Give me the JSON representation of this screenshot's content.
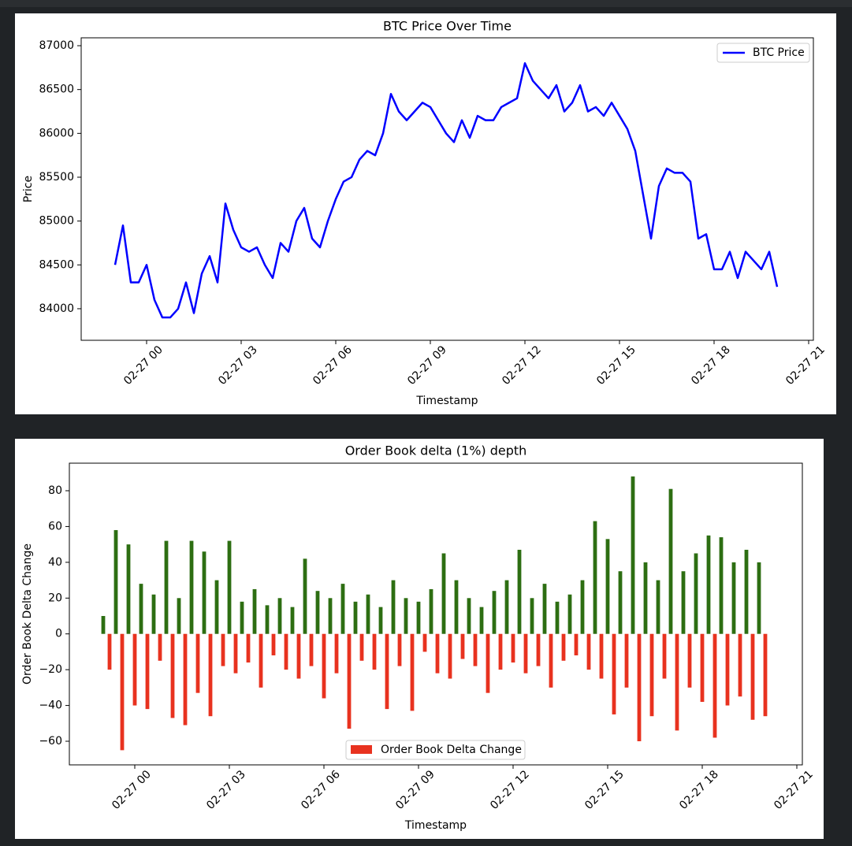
{
  "chart_data": [
    {
      "type": "line",
      "title": "BTC Price Over Time",
      "x_label": "Timestamp",
      "y_label": "Price",
      "x": [
        -1,
        -0.75,
        -0.5,
        -0.25,
        0,
        0.25,
        0.5,
        0.75,
        1,
        1.25,
        1.5,
        1.75,
        2,
        2.25,
        2.5,
        2.75,
        3,
        3.25,
        3.5,
        3.75,
        4,
        4.25,
        4.5,
        4.75,
        5,
        5.25,
        5.5,
        5.75,
        6,
        6.25,
        6.5,
        6.75,
        7,
        7.25,
        7.5,
        7.75,
        8,
        8.25,
        8.5,
        8.75,
        9,
        9.25,
        9.5,
        9.75,
        10,
        10.25,
        10.5,
        10.75,
        11,
        11.25,
        11.5,
        11.75,
        12,
        12.25,
        12.5,
        12.75,
        13,
        13.25,
        13.5,
        13.75,
        14,
        14.25,
        14.5,
        14.75,
        15,
        15.25,
        15.5,
        15.75,
        16,
        16.25,
        16.5,
        16.75,
        17,
        17.25,
        17.5,
        17.75,
        18,
        18.25,
        18.5,
        18.75,
        19,
        19.25,
        19.5,
        19.75,
        20
      ],
      "series": [
        {
          "name": "BTC Price",
          "color": "#0000ff",
          "values": [
            84500,
            84950,
            84300,
            84300,
            84500,
            84100,
            83900,
            83900,
            84000,
            84300,
            83950,
            84400,
            84600,
            84300,
            85200,
            84900,
            84700,
            84650,
            84700,
            84500,
            84350,
            84750,
            84650,
            85000,
            85150,
            84800,
            84700,
            85000,
            85250,
            85450,
            85500,
            85700,
            85800,
            85750,
            86000,
            86450,
            86250,
            86150,
            86250,
            86350,
            86300,
            86150,
            86000,
            85900,
            86150,
            85950,
            86200,
            86150,
            86150,
            86300,
            86350,
            86400,
            86800,
            86600,
            86500,
            86400,
            86550,
            86250,
            86350,
            86550,
            86250,
            86300,
            86200,
            86350,
            86200,
            86050,
            85800,
            85300,
            84800,
            85400,
            85600,
            85550,
            85550,
            85450,
            84800,
            84850,
            84450,
            84450,
            84650,
            84350,
            84650,
            84550,
            84450,
            84650,
            84250
          ]
        }
      ],
      "xlim": [
        -2.075,
        21.15
      ],
      "ylim": [
        83640,
        87090
      ],
      "xticks": [
        {
          "value": 0,
          "label": "02-27 00"
        },
        {
          "value": 3,
          "label": "02-27 03"
        },
        {
          "value": 6,
          "label": "02-27 06"
        },
        {
          "value": 9,
          "label": "02-27 09"
        },
        {
          "value": 12,
          "label": "02-27 12"
        },
        {
          "value": 15,
          "label": "02-27 15"
        },
        {
          "value": 18,
          "label": "02-27 18"
        },
        {
          "value": 21,
          "label": "02-27 21"
        }
      ],
      "yticks": [
        84000,
        84500,
        85000,
        85500,
        86000,
        86500,
        87000
      ],
      "legend": "upper right"
    },
    {
      "type": "bar",
      "title": "Order Book delta (1%) depth",
      "x_label": "Timestamp",
      "y_label": "Order Book Delta Change",
      "x": [
        -1,
        -0.8,
        -0.6,
        -0.4,
        -0.2,
        0,
        0.2,
        0.4,
        0.6,
        0.8,
        1,
        1.2,
        1.4,
        1.6,
        1.8,
        2,
        2.2,
        2.4,
        2.6,
        2.8,
        3,
        3.2,
        3.4,
        3.6,
        3.8,
        4,
        4.2,
        4.4,
        4.6,
        4.8,
        5,
        5.2,
        5.4,
        5.6,
        5.8,
        6,
        6.2,
        6.4,
        6.6,
        6.8,
        7,
        7.2,
        7.4,
        7.6,
        7.8,
        8,
        8.2,
        8.4,
        8.6,
        8.8,
        9,
        9.2,
        9.4,
        9.6,
        9.8,
        10,
        10.2,
        10.4,
        10.6,
        10.8,
        11,
        11.2,
        11.4,
        11.6,
        11.8,
        12,
        12.2,
        12.4,
        12.6,
        12.8,
        13,
        13.2,
        13.4,
        13.6,
        13.8,
        14,
        14.2,
        14.4,
        14.6,
        14.8,
        15,
        15.2,
        15.4,
        15.6,
        15.8,
        16,
        16.2,
        16.4,
        16.6,
        16.8,
        17,
        17.2,
        17.4,
        17.6,
        17.8,
        18,
        18.2,
        18.4,
        18.6,
        18.8,
        19,
        19.2,
        19.4,
        19.6,
        19.8,
        20
      ],
      "series": [
        {
          "name": "Order Book Delta Change",
          "color": "#e8321f",
          "values": [
            10,
            -20,
            58,
            -65,
            50,
            -40,
            28,
            -42,
            22,
            -15,
            52,
            -47,
            20,
            -51,
            52,
            -33,
            46,
            -46,
            30,
            -18,
            52,
            -22,
            18,
            -16,
            25,
            -30,
            16,
            -12,
            20,
            -20,
            15,
            -25,
            42,
            -18,
            24,
            -36,
            20,
            -22,
            28,
            -53,
            18,
            -15,
            22,
            -20,
            15,
            -42,
            30,
            -18,
            20,
            -43,
            18,
            -10,
            25,
            -22,
            45,
            -25,
            30,
            -14,
            20,
            -18,
            15,
            -33,
            24,
            -20,
            30,
            -16,
            47,
            -22,
            20,
            -18,
            28,
            -30,
            18,
            -15,
            22,
            -12,
            30,
            -20,
            63,
            -25,
            53,
            -45,
            35,
            -30,
            88,
            -60,
            40,
            -46,
            30,
            -25,
            81,
            -54,
            35,
            -30,
            45,
            -38,
            55,
            -58,
            54,
            -40,
            40,
            -35,
            47,
            -48,
            40,
            -46
          ]
        }
      ],
      "positive_color": "#2d6e12",
      "xlim": [
        -2.075,
        21.175
      ],
      "ylim": [
        -73.2,
        95.4
      ],
      "xticks": [
        {
          "value": 0,
          "label": "02-27 00"
        },
        {
          "value": 3,
          "label": "02-27 03"
        },
        {
          "value": 6,
          "label": "02-27 06"
        },
        {
          "value": 9,
          "label": "02-27 09"
        },
        {
          "value": 12,
          "label": "02-27 12"
        },
        {
          "value": 15,
          "label": "02-27 15"
        },
        {
          "value": 18,
          "label": "02-27 18"
        },
        {
          "value": 21,
          "label": "02-27 21"
        }
      ],
      "yticks": [
        {
          "value": -60,
          "label": "−60"
        },
        {
          "value": -40,
          "label": "−40"
        },
        {
          "value": -20,
          "label": "−20"
        },
        0,
        20,
        40,
        60,
        80
      ],
      "legend": "lower center"
    }
  ]
}
